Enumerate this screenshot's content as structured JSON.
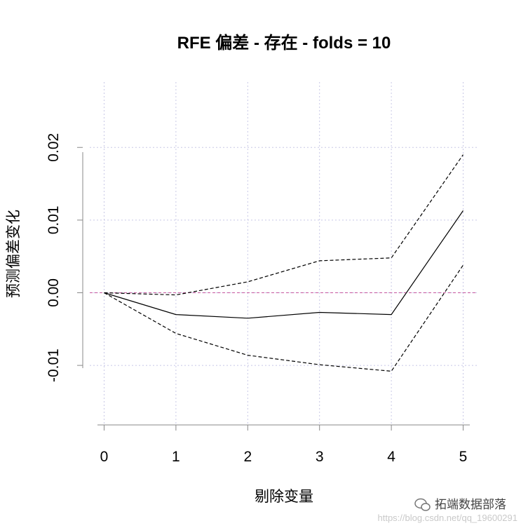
{
  "chart_data": {
    "type": "line",
    "title": "RFE 偏差 - 存在 - folds = 10",
    "xlabel": "剔除变量",
    "ylabel": "预测偏差变化",
    "x": [
      0,
      1,
      2,
      3,
      4,
      5
    ],
    "xticks": [
      "0",
      "1",
      "2",
      "3",
      "4",
      "5"
    ],
    "yticks": [
      {
        "value": 0.02,
        "label": "0.02"
      },
      {
        "value": 0.01,
        "label": "0.01"
      },
      {
        "value": 0.0,
        "label": "0.00"
      },
      {
        "value": -0.01,
        "label": "-0.01"
      }
    ],
    "xlim": [
      -0.2,
      5.2
    ],
    "ylim": [
      -0.018,
      0.029
    ],
    "grid": true,
    "reference_line": {
      "y": 0.0,
      "color": "#c5569e"
    },
    "series": [
      {
        "style": "solid",
        "values": [
          0.0,
          -0.003,
          -0.0035,
          -0.0027,
          -0.003,
          0.0113
        ]
      },
      {
        "style": "dashed",
        "values": [
          0.0,
          -0.0003,
          0.0015,
          0.0044,
          0.0048,
          0.019
        ]
      },
      {
        "style": "dashed",
        "values": [
          0.0,
          -0.0056,
          -0.0086,
          -0.0099,
          -0.0108,
          0.0038
        ]
      }
    ]
  },
  "watermark": {
    "name": "拓端数据部落",
    "url": "https://blog.csdn.net/qq_19600291"
  }
}
